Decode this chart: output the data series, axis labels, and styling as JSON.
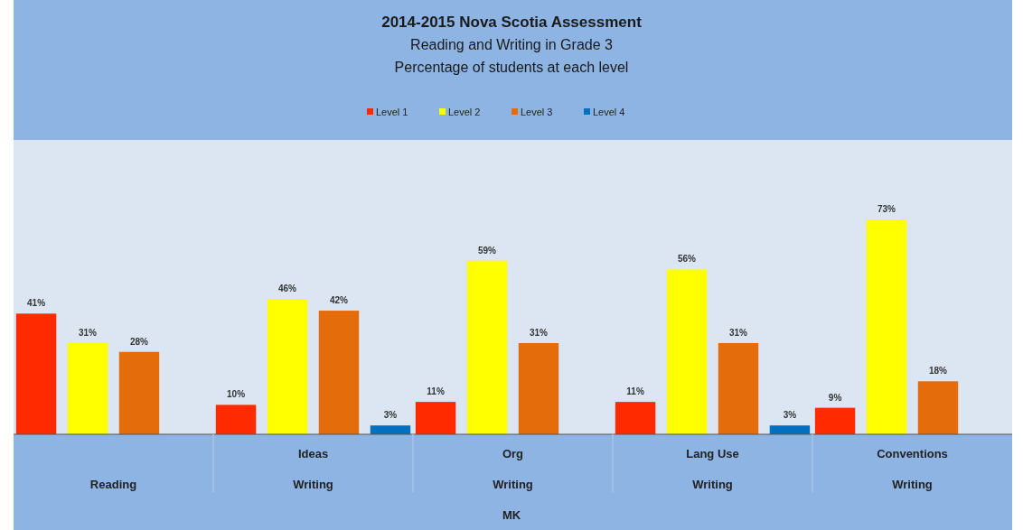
{
  "chart_data": {
    "type": "bar",
    "title": "2014-2015 Nova Scotia Assessment",
    "subtitle": "Reading and Writing in Grade 3\nPercentage of students at each level",
    "xlabel": "MK",
    "categories": [
      "Reading",
      "Writing",
      "Writing",
      "Writing",
      "Writing"
    ],
    "annotations": [
      "Ideas",
      "Org",
      "Lang Use",
      "Conventions"
    ],
    "ylim": [
      0,
      100
    ],
    "series": [
      {
        "name": "Level 1",
        "color": "#ff2a00",
        "values": [
          41,
          10,
          11,
          11,
          9
        ],
        "value_labels": [
          "41%",
          "10%",
          "11%",
          "11%",
          "9%"
        ]
      },
      {
        "name": "Level 2",
        "color": "#ffff00",
        "values": [
          31,
          46,
          59,
          56,
          73
        ],
        "value_labels": [
          "31%",
          "46%",
          "59%",
          "56%",
          "73%"
        ]
      },
      {
        "name": "Level 3",
        "color": "#e46c0a",
        "values": [
          28,
          42,
          31,
          31,
          18
        ],
        "value_labels": [
          "28%",
          "42%",
          "31%",
          "31%",
          "18%"
        ]
      },
      {
        "name": "Level 4",
        "color": "#0070c0",
        "values": [
          null,
          3,
          null,
          3,
          null
        ],
        "value_labels": [
          null,
          "3%",
          null,
          "3%",
          null
        ]
      }
    ],
    "legend": "top"
  }
}
